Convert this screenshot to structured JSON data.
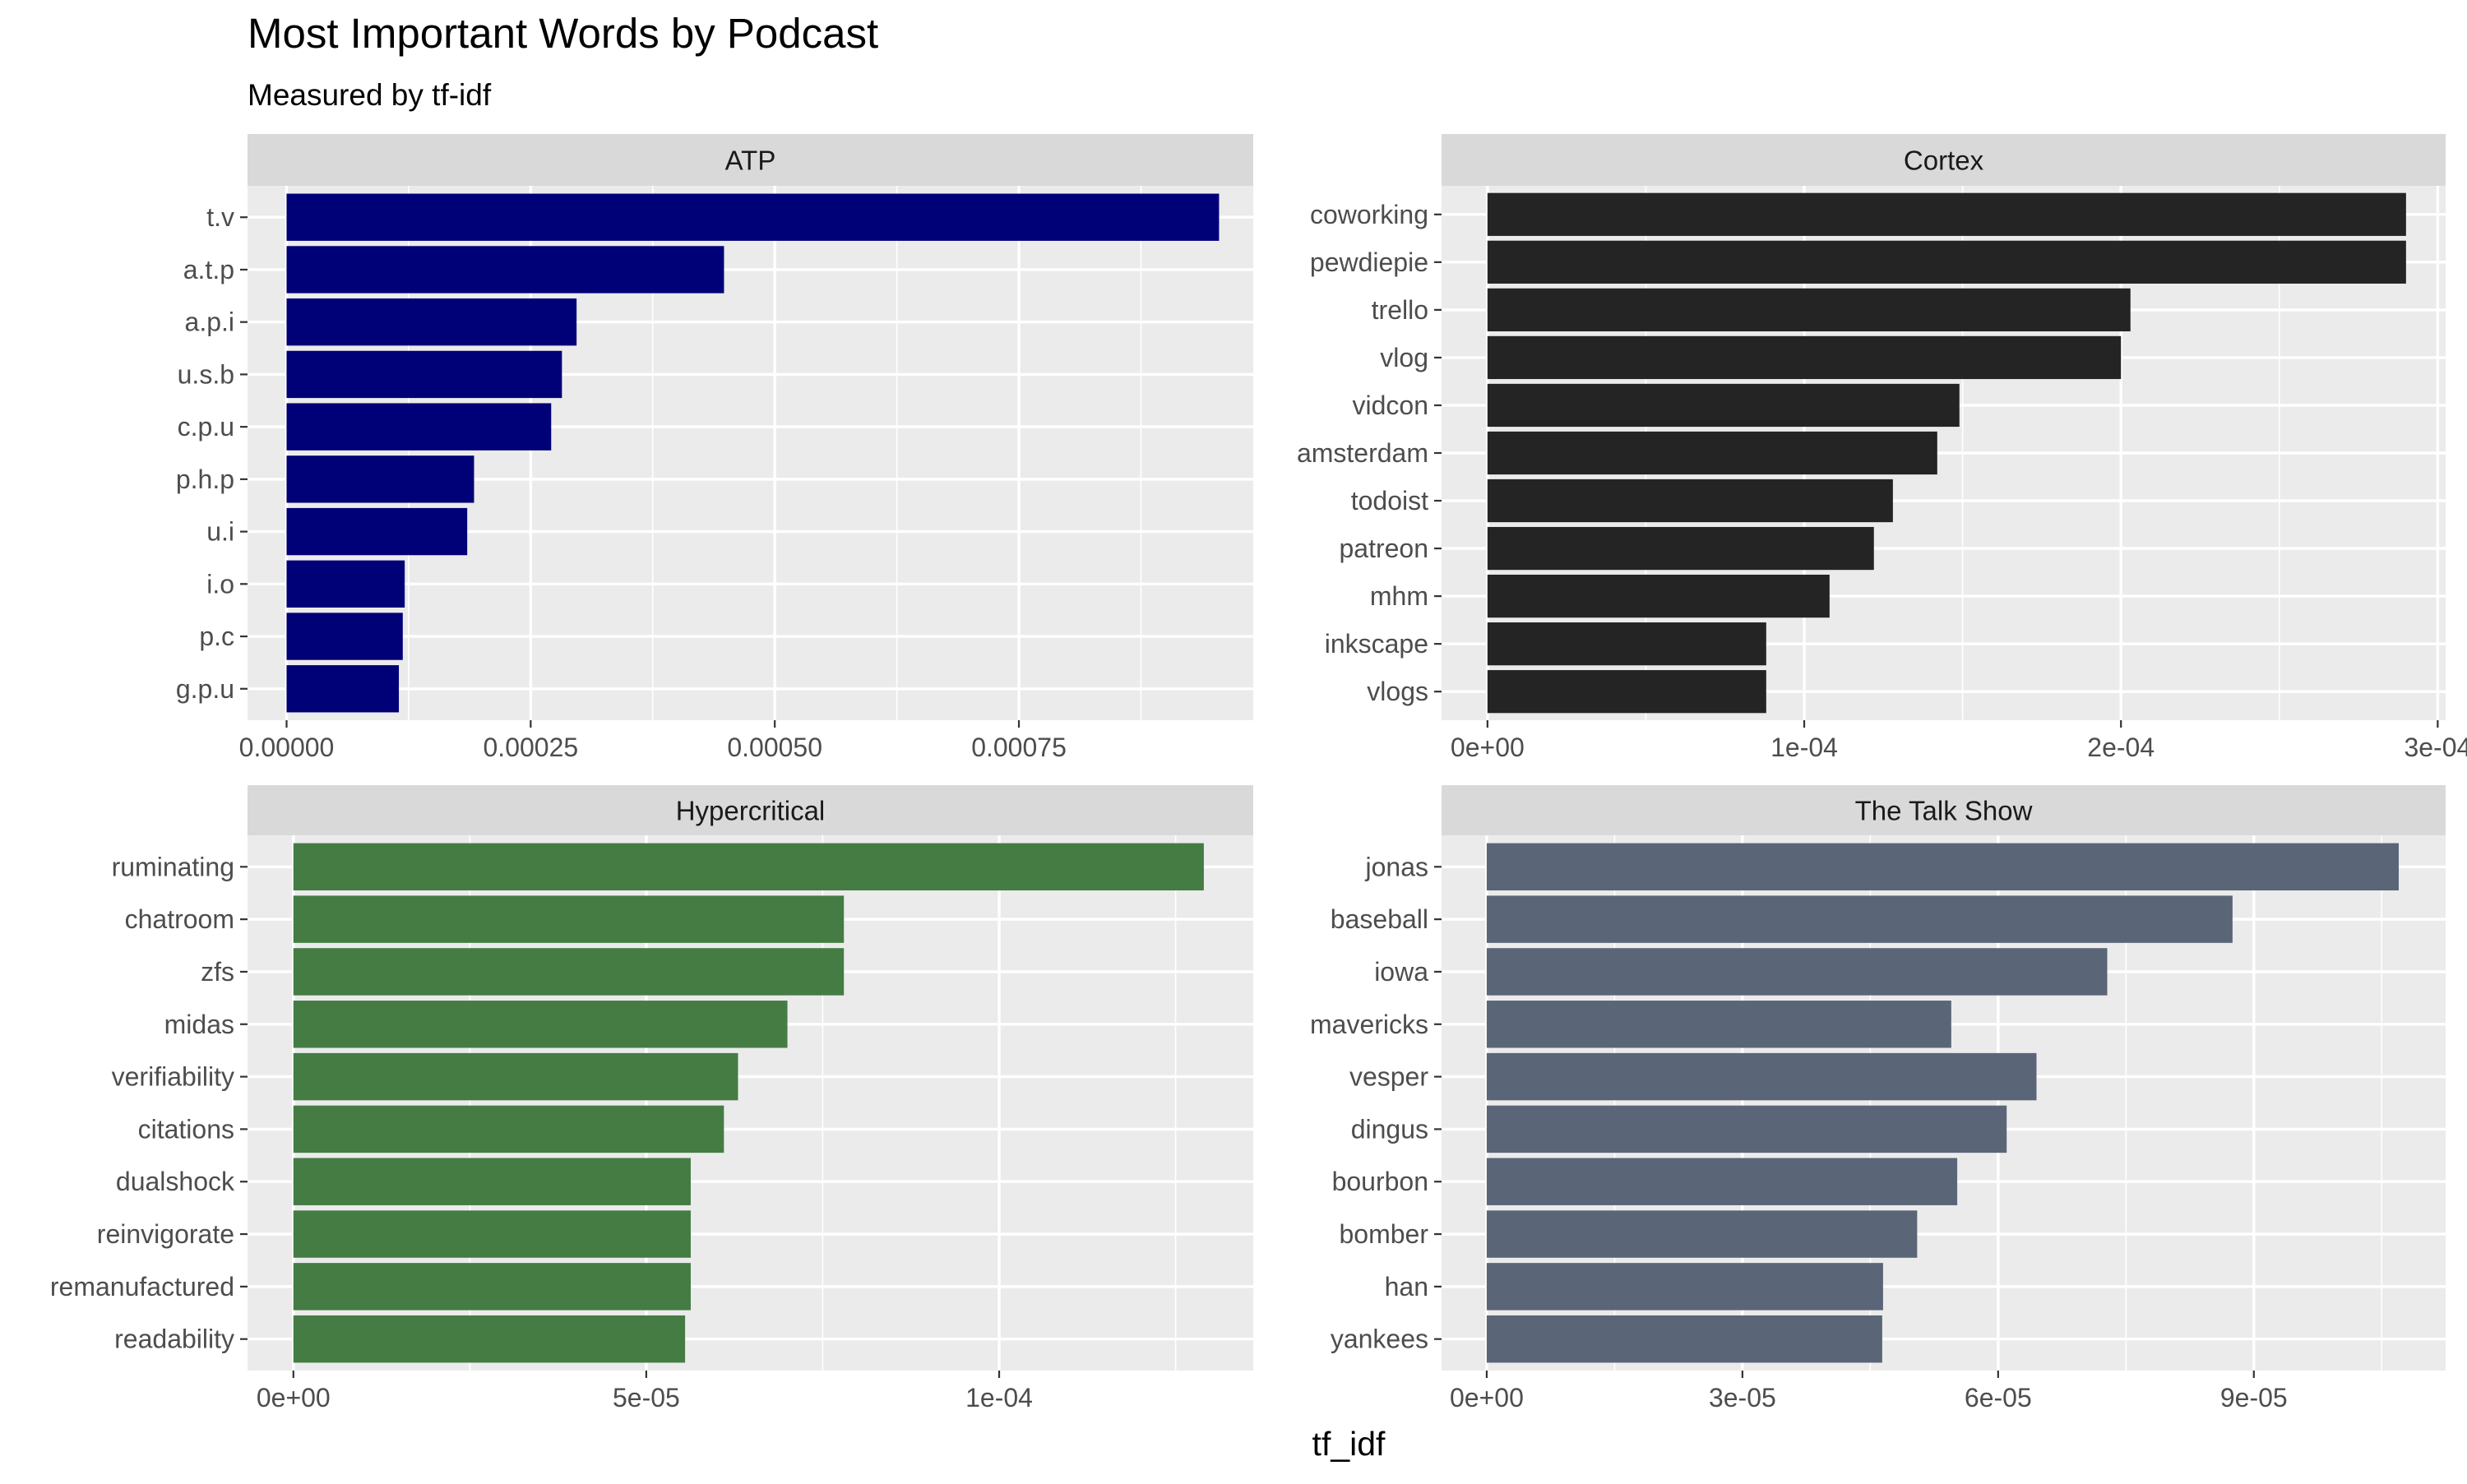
{
  "chart_data": {
    "type": "bar",
    "orientation": "horizontal",
    "title": "Most Important Words by Podcast",
    "subtitle": "Measured by tf-idf",
    "xlabel": "tf_idf",
    "ylabel": "",
    "grid": true,
    "facets": [
      {
        "name": "ATP",
        "color": "#000077",
        "xlim": [
          -4e-05,
          0.00099
        ],
        "xticks": [
          0,
          0.00025,
          0.0005,
          0.00075
        ],
        "xtick_labels": [
          "0.00000",
          "0.00025",
          "0.00050",
          "0.00075"
        ],
        "categories": [
          "t.v",
          "a.t.p",
          "a.p.i",
          "u.s.b",
          "c.p.u",
          "p.h.p",
          "u.i",
          "i.o",
          "p.c",
          "g.p.u"
        ],
        "values": [
          0.000955,
          0.000448,
          0.000297,
          0.000282,
          0.000271,
          0.000192,
          0.000185,
          0.000121,
          0.000119,
          0.000115
        ]
      },
      {
        "name": "Cortex",
        "color": "#242424",
        "xlim": [
          -1.45e-05,
          0.0003025
        ],
        "xticks": [
          0,
          0.0001,
          0.0002,
          0.0003
        ],
        "xtick_labels": [
          "0e+00",
          "1e-04",
          "2e-04",
          "3e-04"
        ],
        "categories": [
          "coworking",
          "pewdiepie",
          "trello",
          "vlog",
          "vidcon",
          "amsterdam",
          "todoist",
          "patreon",
          "mhm",
          "inkscape",
          "vlogs"
        ],
        "values": [
          0.00029,
          0.00029,
          0.000203,
          0.0002,
          0.000149,
          0.000142,
          0.000128,
          0.000122,
          0.000108,
          8.8e-05,
          8.8e-05
        ]
      },
      {
        "name": "Hypercritical",
        "color": "#447c44",
        "xlim": [
          -6.5e-06,
          0.000136
        ],
        "xticks": [
          0,
          5e-05,
          0.0001
        ],
        "xtick_labels": [
          "0e+00",
          "5e-05",
          "1e-04"
        ],
        "categories": [
          "ruminating",
          "chatroom",
          "zfs",
          "midas",
          "verifiability",
          "citations",
          "dualshock",
          "reinvigorate",
          "remanufactured",
          "readability"
        ],
        "values": [
          0.000129,
          7.8e-05,
          7.8e-05,
          7e-05,
          6.3e-05,
          6.1e-05,
          5.63e-05,
          5.63e-05,
          5.63e-05,
          5.55e-05
        ]
      },
      {
        "name": "The Talk Show",
        "color": "#5a6578",
        "xlim": [
          -5.3e-06,
          0.0001125
        ],
        "xticks": [
          0,
          3e-05,
          6e-05,
          9e-05
        ],
        "xtick_labels": [
          "0e+00",
          "3e-05",
          "6e-05",
          "9e-05"
        ],
        "categories": [
          "jonas",
          "baseball",
          "iowa",
          "mavericks",
          "vesper",
          "dingus",
          "bourbon",
          "bomber",
          "han",
          "yankees"
        ],
        "values": [
          0.000107,
          8.75e-05,
          7.28e-05,
          5.45e-05,
          6.45e-05,
          6.1e-05,
          5.52e-05,
          5.05e-05,
          4.65e-05,
          4.64e-05
        ]
      }
    ]
  }
}
